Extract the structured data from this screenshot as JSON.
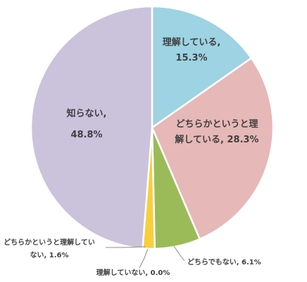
{
  "chart_data": {
    "type": "pie",
    "title": "",
    "start_angle_deg": 0,
    "direction": "clockwise",
    "legend": "none",
    "slices": [
      {
        "name": "理解している",
        "value": 15.3,
        "label_lines": [
          "理解している,",
          "15.3%"
        ],
        "color": "#9dd3e3"
      },
      {
        "name": "どちらかというと理解している",
        "value": 28.3,
        "label_lines": [
          "どちらかというと理",
          "解している, 28.3%"
        ],
        "color": "#e6b8b7"
      },
      {
        "name": "どちらでもない",
        "value": 6.1,
        "label_lines": [
          "どちらでもない, 6.1%"
        ],
        "color": "#9bbb59"
      },
      {
        "name": "理解していない",
        "value": 0.0,
        "label_lines": [
          "理解していない, 0.0%"
        ],
        "color": "#ff9a33"
      },
      {
        "name": "どちらかというと理解していない",
        "value": 1.6,
        "label_lines": [
          "どちらかというと理解してい",
          "ない, 1.6%"
        ],
        "color": "#f7cf3b"
      },
      {
        "name": "知らない",
        "value": 48.8,
        "label_lines": [
          "知らない,",
          "48.8%"
        ],
        "color": "#cbc2dc"
      }
    ]
  }
}
